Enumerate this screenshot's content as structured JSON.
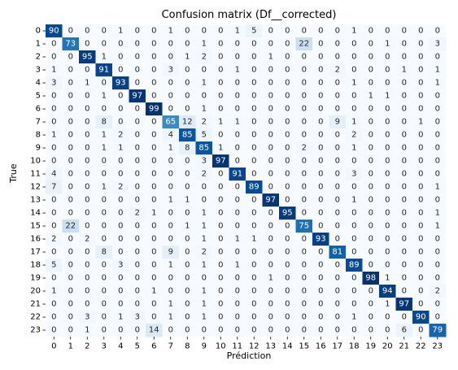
{
  "chart_data": {
    "type": "heatmap",
    "title": "Confusion matrix (Df__corrected)",
    "xlabel": "Prédiction",
    "ylabel": "True",
    "x_labels": [
      "0",
      "1",
      "2",
      "3",
      "4",
      "5",
      "6",
      "7",
      "8",
      "9",
      "10",
      "11",
      "12",
      "13",
      "14",
      "15",
      "16",
      "17",
      "18",
      "19",
      "20",
      "21",
      "22",
      "23"
    ],
    "y_labels": [
      "0",
      "1",
      "2",
      "3",
      "4",
      "5",
      "6",
      "7",
      "8",
      "9",
      "10",
      "11",
      "12",
      "13",
      "14",
      "15",
      "16",
      "17",
      "18",
      "19",
      "20",
      "21",
      "22",
      "23"
    ],
    "colormap": "Blues",
    "value_range": [
      0,
      99
    ],
    "colorbar": false,
    "matrix": [
      [
        90,
        0,
        0,
        0,
        1,
        0,
        0,
        1,
        0,
        0,
        0,
        1,
        5,
        0,
        0,
        0,
        0,
        0,
        1,
        0,
        0,
        0,
        0,
        0
      ],
      [
        0,
        73,
        0,
        0,
        0,
        0,
        0,
        0,
        0,
        1,
        0,
        0,
        0,
        0,
        0,
        22,
        0,
        0,
        0,
        0,
        1,
        0,
        0,
        3
      ],
      [
        0,
        0,
        95,
        1,
        0,
        0,
        0,
        0,
        1,
        2,
        0,
        0,
        0,
        1,
        0,
        0,
        0,
        0,
        0,
        0,
        0,
        0,
        0,
        0
      ],
      [
        1,
        0,
        0,
        91,
        0,
        0,
        0,
        3,
        0,
        0,
        0,
        1,
        0,
        0,
        0,
        0,
        0,
        2,
        0,
        0,
        0,
        1,
        0,
        1
      ],
      [
        3,
        0,
        1,
        0,
        93,
        0,
        0,
        0,
        0,
        1,
        0,
        0,
        0,
        0,
        0,
        0,
        0,
        0,
        1,
        0,
        0,
        0,
        0,
        1
      ],
      [
        0,
        0,
        0,
        1,
        0,
        97,
        0,
        0,
        0,
        0,
        0,
        0,
        0,
        0,
        0,
        0,
        0,
        0,
        0,
        1,
        1,
        0,
        0,
        0
      ],
      [
        0,
        0,
        0,
        0,
        0,
        0,
        99,
        0,
        0,
        1,
        0,
        0,
        0,
        0,
        0,
        0,
        0,
        0,
        0,
        0,
        0,
        0,
        0,
        0
      ],
      [
        0,
        0,
        0,
        8,
        0,
        0,
        0,
        65,
        12,
        2,
        1,
        1,
        0,
        0,
        0,
        0,
        0,
        9,
        1,
        0,
        0,
        0,
        1,
        0
      ],
      [
        1,
        0,
        0,
        1,
        2,
        0,
        0,
        4,
        85,
        5,
        0,
        0,
        0,
        0,
        0,
        0,
        0,
        0,
        2,
        0,
        0,
        0,
        0,
        0
      ],
      [
        0,
        0,
        0,
        1,
        1,
        0,
        0,
        1,
        8,
        85,
        1,
        0,
        0,
        0,
        0,
        2,
        0,
        0,
        1,
        0,
        0,
        0,
        0,
        0
      ],
      [
        0,
        0,
        0,
        0,
        0,
        0,
        0,
        0,
        0,
        3,
        97,
        0,
        0,
        0,
        0,
        0,
        0,
        0,
        0,
        0,
        0,
        0,
        0,
        0
      ],
      [
        4,
        0,
        0,
        0,
        0,
        0,
        0,
        0,
        0,
        2,
        0,
        91,
        0,
        0,
        0,
        0,
        0,
        0,
        3,
        0,
        0,
        0,
        0,
        0
      ],
      [
        7,
        0,
        0,
        1,
        2,
        0,
        0,
        0,
        0,
        0,
        0,
        0,
        89,
        0,
        0,
        0,
        0,
        0,
        0,
        0,
        0,
        0,
        0,
        1
      ],
      [
        0,
        0,
        0,
        0,
        0,
        0,
        0,
        1,
        1,
        0,
        0,
        0,
        0,
        97,
        0,
        0,
        0,
        0,
        1,
        0,
        0,
        0,
        0,
        0
      ],
      [
        0,
        0,
        0,
        0,
        0,
        2,
        1,
        0,
        0,
        1,
        0,
        0,
        0,
        0,
        95,
        0,
        0,
        0,
        0,
        0,
        0,
        0,
        0,
        1
      ],
      [
        0,
        22,
        0,
        0,
        0,
        0,
        0,
        0,
        1,
        1,
        0,
        0,
        0,
        0,
        0,
        75,
        0,
        0,
        0,
        0,
        0,
        0,
        0,
        1
      ],
      [
        2,
        0,
        2,
        0,
        0,
        0,
        0,
        0,
        0,
        1,
        0,
        1,
        1,
        0,
        0,
        0,
        93,
        0,
        0,
        0,
        0,
        0,
        0,
        0
      ],
      [
        0,
        0,
        0,
        8,
        0,
        0,
        0,
        9,
        0,
        2,
        0,
        0,
        0,
        0,
        0,
        0,
        0,
        81,
        0,
        0,
        0,
        0,
        0,
        0
      ],
      [
        5,
        0,
        0,
        0,
        3,
        0,
        0,
        1,
        0,
        1,
        0,
        1,
        0,
        0,
        0,
        0,
        0,
        0,
        89,
        0,
        0,
        0,
        0,
        0
      ],
      [
        0,
        0,
        0,
        0,
        0,
        0,
        0,
        0,
        0,
        0,
        0,
        0,
        0,
        1,
        0,
        0,
        0,
        0,
        0,
        98,
        1,
        0,
        0,
        0
      ],
      [
        1,
        0,
        0,
        0,
        0,
        0,
        1,
        0,
        0,
        1,
        0,
        0,
        0,
        0,
        0,
        0,
        0,
        0,
        0,
        0,
        94,
        0,
        0,
        2
      ],
      [
        0,
        0,
        0,
        0,
        0,
        0,
        0,
        1,
        0,
        1,
        0,
        0,
        0,
        0,
        0,
        0,
        0,
        0,
        0,
        0,
        1,
        97,
        0,
        0
      ],
      [
        0,
        0,
        3,
        0,
        1,
        3,
        0,
        1,
        0,
        1,
        0,
        0,
        0,
        0,
        0,
        0,
        0,
        0,
        1,
        0,
        0,
        0,
        90,
        0
      ],
      [
        0,
        0,
        1,
        0,
        0,
        0,
        14,
        0,
        0,
        0,
        0,
        0,
        0,
        0,
        0,
        0,
        0,
        0,
        0,
        0,
        0,
        6,
        0,
        79
      ]
    ]
  }
}
